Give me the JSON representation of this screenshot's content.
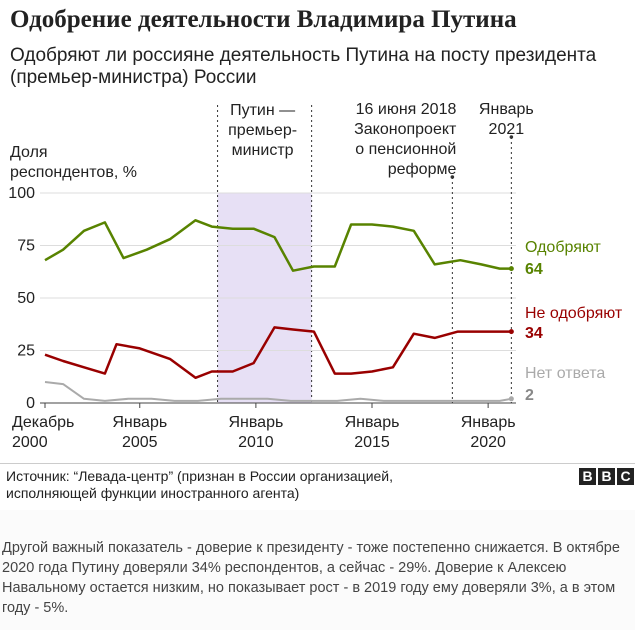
{
  "title": "Одобрение деятельности Владимира Путина",
  "subtitle": "Одобряют ли россияне деятельность Путина на посту президента (премьер-министра) России",
  "source": "Источник: “Левада-центр” (признан в России организацией,\nисполняющей функции иностранного агента)",
  "logo": [
    "B",
    "B",
    "C"
  ],
  "caption": "Другой важный показатель - доверие к президенту - тоже постепенно снижается. В октябре 2020 года Путину доверяли 34% респондентов, а сейчас - 29%. Доверие к Алексею Навальному остается низким, но показывает рост - в 2019 году ему доверяли 3%, а в этом году - 5%.",
  "chart_data": {
    "type": "line",
    "ylabel": [
      "Доля",
      "респондентов, %"
    ],
    "ylim": [
      0,
      100
    ],
    "yticks": [
      0,
      25,
      50,
      75,
      100
    ],
    "xlim": [
      2000.92,
      2021.2
    ],
    "xticks": [
      {
        "x": 2000.92,
        "label": [
          "Декабрь",
          "2000"
        ]
      },
      {
        "x": 2005.0,
        "label": [
          "Январь",
          "2005"
        ]
      },
      {
        "x": 2010.0,
        "label": [
          "Январь",
          "2010"
        ]
      },
      {
        "x": 2015.0,
        "label": [
          "Январь",
          "2015"
        ]
      },
      {
        "x": 2020.0,
        "label": [
          "Январь",
          "2020"
        ]
      }
    ],
    "grid": true,
    "shaded_period": {
      "x0": 2008.35,
      "x1": 2012.4,
      "color": "#e7e0f5",
      "label": [
        "Путин —",
        "премьер-",
        "министр"
      ]
    },
    "annotations": [
      {
        "x": 2018.46,
        "label": [
          "16 июня 2018",
          "Законопроект",
          "о пенсионной",
          "реформе"
        ]
      },
      {
        "x": 2021.0,
        "label": [
          "Январь",
          "2021"
        ]
      }
    ],
    "series": [
      {
        "name": "Одобряют",
        "end_value": "64",
        "color": "#588300",
        "x": [
          2000.92,
          2001.7,
          2002.6,
          2003.5,
          2004.3,
          2005.3,
          2006.3,
          2007.4,
          2008.1,
          2009.0,
          2009.9,
          2010.8,
          2011.6,
          2012.5,
          2013.4,
          2014.1,
          2015.0,
          2015.9,
          2016.8,
          2017.7,
          2018.8,
          2019.7,
          2020.5,
          2021.0
        ],
        "y": [
          68,
          73,
          82,
          86,
          69,
          73,
          78,
          87,
          84,
          83,
          83,
          79,
          63,
          65,
          65,
          85,
          85,
          84,
          82,
          66,
          68,
          66,
          64,
          64
        ]
      },
      {
        "name": "Не одобряют",
        "end_value": "34",
        "color": "#990000",
        "x": [
          2000.92,
          2001.7,
          2002.6,
          2003.5,
          2004.0,
          2005.0,
          2006.3,
          2007.4,
          2008.1,
          2009.0,
          2009.9,
          2010.8,
          2011.6,
          2012.5,
          2013.4,
          2014.1,
          2015.0,
          2015.9,
          2016.8,
          2017.7,
          2018.7,
          2019.7,
          2020.5,
          2021.0
        ],
        "y": [
          23,
          20,
          17,
          14,
          28,
          26,
          21,
          12,
          15,
          15,
          19,
          36,
          35,
          34,
          14,
          14,
          15,
          17,
          33,
          31,
          34,
          34,
          34,
          34
        ]
      },
      {
        "name": "Нет ответа",
        "end_value": "2",
        "color": "#aaaaaa",
        "x": [
          2000.92,
          2001.7,
          2002.6,
          2003.5,
          2004.5,
          2005.5,
          2006.5,
          2007.5,
          2008.5,
          2009.5,
          2010.5,
          2011.5,
          2012.5,
          2013.5,
          2014.5,
          2015.5,
          2016.5,
          2017.5,
          2018.5,
          2019.5,
          2020.5,
          2021.0
        ],
        "y": [
          10,
          9,
          2,
          1,
          2,
          2,
          1,
          1,
          2,
          2,
          2,
          1,
          1,
          1,
          2,
          1,
          1,
          1,
          1,
          1,
          1,
          2
        ]
      }
    ]
  }
}
